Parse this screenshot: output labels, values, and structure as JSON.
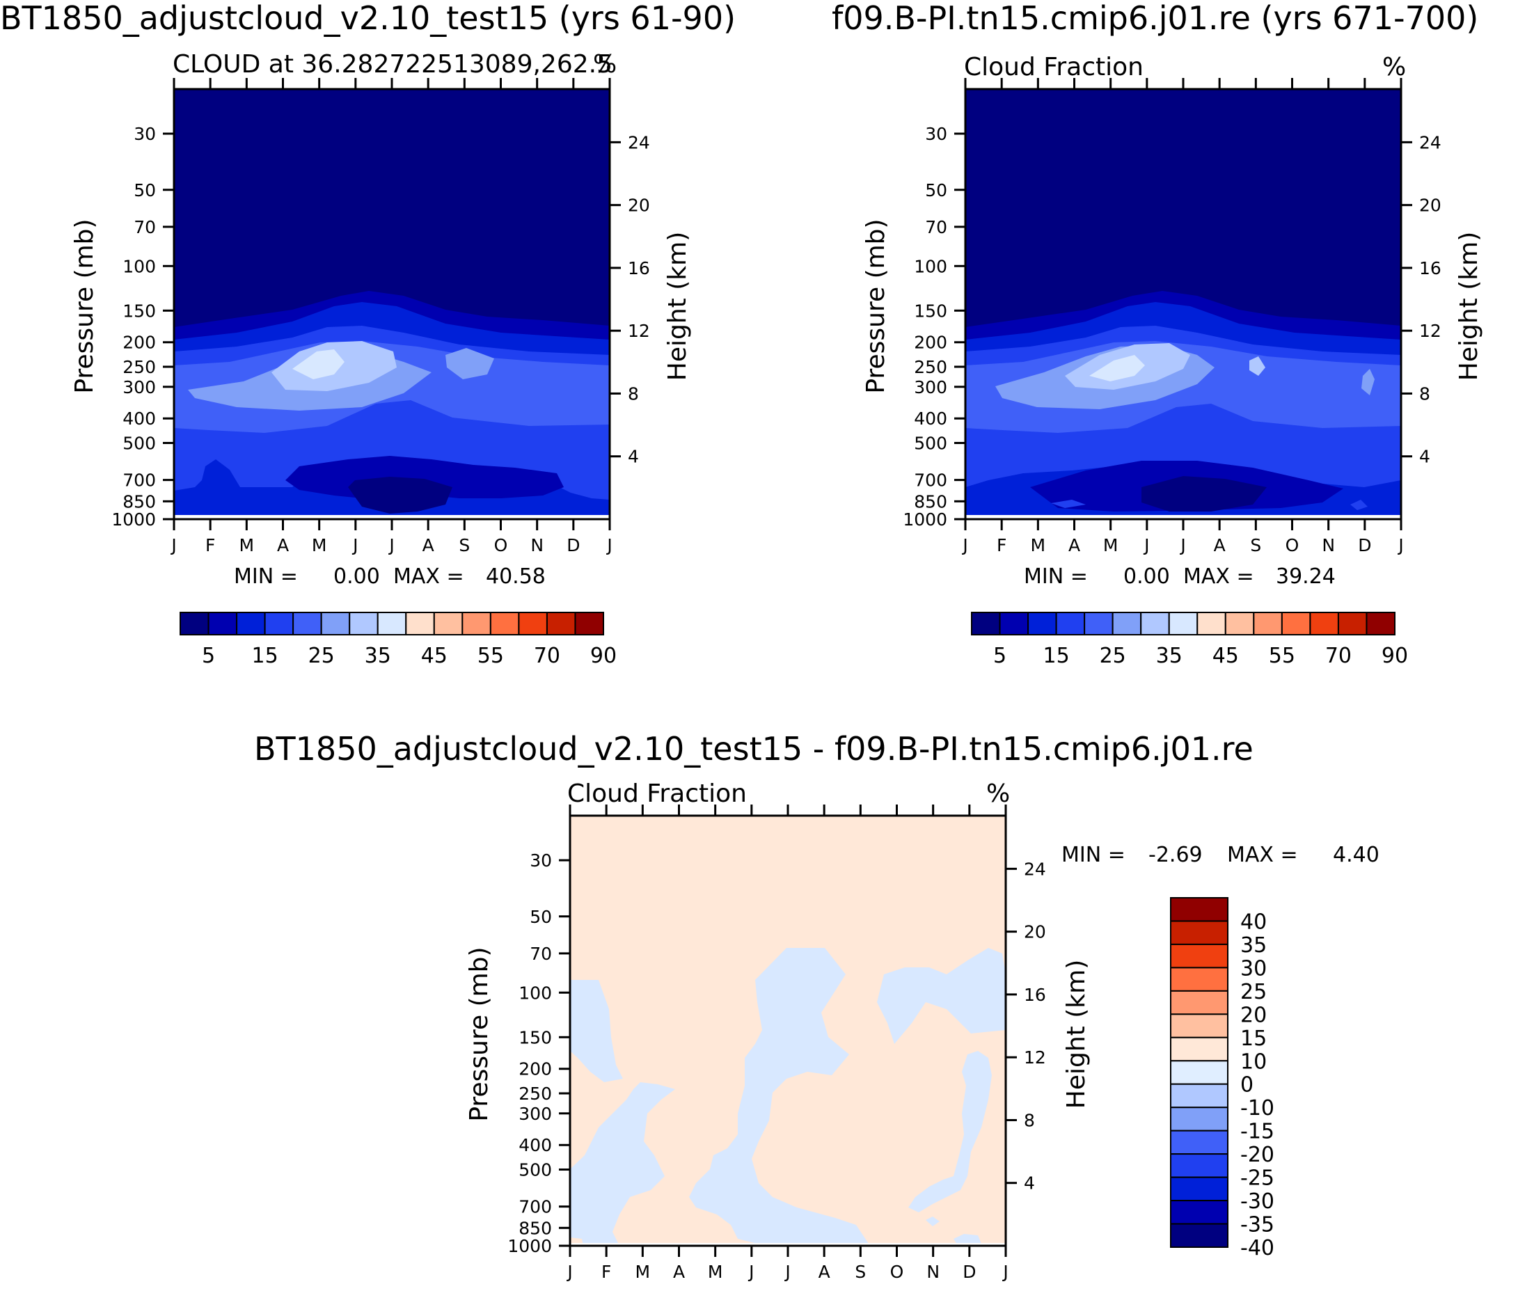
{
  "chart_data": [
    {
      "type": "contour",
      "header": "BT1850_adjustcloud_v2.10_test15 (yrs 61-90)",
      "title": "CLOUD at 36.282722513089,262.5",
      "units": "%",
      "ylabel": "Pressure (mb)",
      "ylabel_right": "Height (km)",
      "months": [
        "J",
        "F",
        "M",
        "A",
        "M",
        "J",
        "J",
        "A",
        "S",
        "O",
        "N",
        "D",
        "J"
      ],
      "pressure_ticks": [
        "30",
        "50",
        "70",
        "100",
        "150",
        "200",
        "250",
        "300",
        "400",
        "500",
        "700",
        "850",
        "1000"
      ],
      "height_ticks": [
        "24",
        "20",
        "16",
        "12",
        "8",
        "4"
      ],
      "min_label": "MIN =",
      "min_value": "0.00",
      "max_label": "MAX =",
      "max_value": "40.58",
      "colorbar_labels": [
        "5",
        "15",
        "25",
        "35",
        "45",
        "55",
        "70",
        "90"
      ],
      "levels": [
        5,
        10,
        15,
        20,
        25,
        30,
        35,
        40,
        45,
        50,
        55,
        60,
        70,
        80,
        90
      ],
      "colors": [
        "#000080",
        "#0000b0",
        "#0020d8",
        "#2040f0",
        "#4060f8",
        "#80a0f8",
        "#b0c8ff",
        "#d8e8ff",
        "#ffe0cc",
        "#ffc0a0",
        "#ff9870",
        "#ff7040",
        "#f04010",
        "#c82000",
        "#900000"
      ]
    },
    {
      "type": "contour",
      "header": "f09.B-PI.tn15.cmip6.j01.re (yrs 671-700)",
      "title": "Cloud Fraction",
      "units": "%",
      "ylabel": "Pressure (mb)",
      "ylabel_right": "Height (km)",
      "months": [
        "J",
        "F",
        "M",
        "A",
        "M",
        "J",
        "J",
        "A",
        "S",
        "O",
        "N",
        "D",
        "J"
      ],
      "pressure_ticks": [
        "30",
        "50",
        "70",
        "100",
        "150",
        "200",
        "250",
        "300",
        "400",
        "500",
        "700",
        "850",
        "1000"
      ],
      "height_ticks": [
        "24",
        "20",
        "16",
        "12",
        "8",
        "4"
      ],
      "min_label": "MIN =",
      "min_value": "0.00",
      "max_label": "MAX =",
      "max_value": "39.24",
      "colorbar_labels": [
        "5",
        "15",
        "25",
        "35",
        "45",
        "55",
        "70",
        "90"
      ]
    },
    {
      "type": "contour",
      "header": "BT1850_adjustcloud_v2.10_test15 - f09.B-PI.tn15.cmip6.j01.re",
      "title": "Cloud Fraction",
      "units": "%",
      "ylabel": "Pressure (mb)",
      "ylabel_right": "Height (km)",
      "months": [
        "J",
        "F",
        "M",
        "A",
        "M",
        "J",
        "J",
        "A",
        "S",
        "O",
        "N",
        "D",
        "J"
      ],
      "pressure_ticks": [
        "30",
        "50",
        "70",
        "100",
        "150",
        "200",
        "250",
        "300",
        "400",
        "500",
        "700",
        "850",
        "1000"
      ],
      "height_ticks": [
        "24",
        "20",
        "16",
        "12",
        "8",
        "4"
      ],
      "min_label": "MIN =",
      "min_value": "-2.69",
      "max_label": "MAX =",
      "max_value": "4.40",
      "colorbar_labels": [
        "40",
        "35",
        "30",
        "25",
        "20",
        "15",
        "10",
        "0",
        "-10",
        "-15",
        "-20",
        "-25",
        "-30",
        "-35",
        "-40"
      ],
      "colors": [
        "#900000",
        "#c82000",
        "#f04010",
        "#ff7040",
        "#ff9870",
        "#ffc0a0",
        "#ffe8d8",
        "#e0eeff",
        "#b0c8ff",
        "#80a0f8",
        "#4060f8",
        "#2040f0",
        "#0020d8",
        "#0000b0",
        "#000080"
      ]
    }
  ]
}
